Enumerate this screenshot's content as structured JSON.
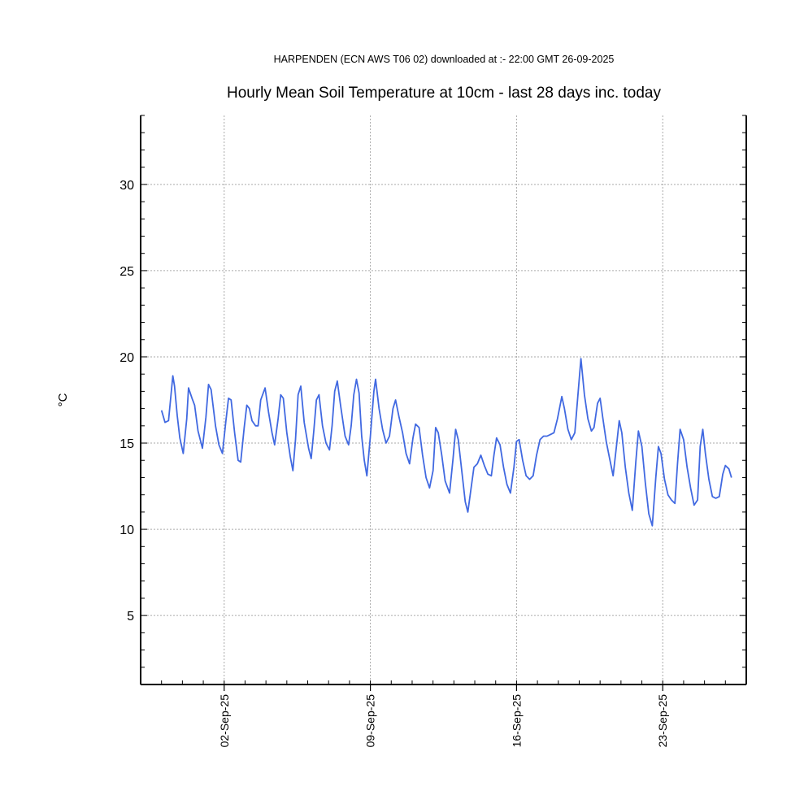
{
  "header": {
    "subtitle": "HARPENDEN (ECN AWS T06 02) downloaded at :- 22:00 GMT 26-09-2025",
    "title": "Hourly Mean Soil Temperature at 10cm - last 28 days inc. today"
  },
  "colors": {
    "line": "#4169E1",
    "grid": "#AAAAAA",
    "axis": "#000000"
  },
  "chart_data": {
    "type": "line",
    "title": "Hourly Mean Soil Temperature at 10cm - last 28 days inc. today",
    "xlabel": "",
    "ylabel": "°C",
    "xlim": [
      "2025-08-29T00:00",
      "2025-09-27T00:00"
    ],
    "ylim": [
      1,
      34
    ],
    "y_ticks": [
      5,
      10,
      15,
      20,
      25,
      30
    ],
    "x_ticks": [
      {
        "date": "2025-09-02",
        "label": "02-Sep-25"
      },
      {
        "date": "2025-09-09",
        "label": "09-Sep-25"
      },
      {
        "date": "2025-09-16",
        "label": "16-Sep-25"
      },
      {
        "date": "2025-09-23",
        "label": "23-Sep-25"
      }
    ],
    "grid": true,
    "series": [
      {
        "values": [
          [
            "2025-08-30T00:00",
            16.9
          ],
          [
            "2025-08-30T04:00",
            16.2
          ],
          [
            "2025-08-30T08:00",
            16.3
          ],
          [
            "2025-08-30T13:00",
            18.9
          ],
          [
            "2025-08-30T15:00",
            18.3
          ],
          [
            "2025-08-30T18:00",
            16.6
          ],
          [
            "2025-08-30T21:00",
            15.3
          ],
          [
            "2025-08-31T01:00",
            14.4
          ],
          [
            "2025-08-31T05:00",
            16.4
          ],
          [
            "2025-08-31T07:00",
            18.2
          ],
          [
            "2025-08-31T11:00",
            17.6
          ],
          [
            "2025-08-31T14:00",
            17.2
          ],
          [
            "2025-08-31T18:00",
            15.7
          ],
          [
            "2025-08-31T23:00",
            14.7
          ],
          [
            "2025-09-01T03:00",
            16.5
          ],
          [
            "2025-09-01T06:00",
            18.4
          ],
          [
            "2025-09-01T09:00",
            18.1
          ],
          [
            "2025-09-01T14:00",
            16.0
          ],
          [
            "2025-09-01T18:00",
            14.9
          ],
          [
            "2025-09-01T22:00",
            14.4
          ],
          [
            "2025-09-02T02:00",
            16.3
          ],
          [
            "2025-09-02T05:00",
            17.6
          ],
          [
            "2025-09-02T08:00",
            17.5
          ],
          [
            "2025-09-02T12:00",
            15.6
          ],
          [
            "2025-09-02T16:00",
            14.0
          ],
          [
            "2025-09-02T19:00",
            13.9
          ],
          [
            "2025-09-02T23:00",
            15.9
          ],
          [
            "2025-09-03T02:00",
            17.2
          ],
          [
            "2025-09-03T05:00",
            17.0
          ],
          [
            "2025-09-03T08:00",
            16.3
          ],
          [
            "2025-09-03T12:00",
            16.0
          ],
          [
            "2025-09-03T15:00",
            16.0
          ],
          [
            "2025-09-03T18:00",
            17.5
          ],
          [
            "2025-09-03T23:00",
            18.2
          ],
          [
            "2025-09-04T03:00",
            16.8
          ],
          [
            "2025-09-04T07:00",
            15.6
          ],
          [
            "2025-09-04T10:00",
            14.9
          ],
          [
            "2025-09-04T14:00",
            16.4
          ],
          [
            "2025-09-04T17:00",
            17.8
          ],
          [
            "2025-09-04T20:00",
            17.6
          ],
          [
            "2025-09-05T00:00",
            15.6
          ],
          [
            "2025-09-05T04:00",
            14.2
          ],
          [
            "2025-09-05T07:00",
            13.4
          ],
          [
            "2025-09-05T10:00",
            15.2
          ],
          [
            "2025-09-05T13:00",
            17.8
          ],
          [
            "2025-09-05T16:00",
            18.3
          ],
          [
            "2025-09-05T20:00",
            16.2
          ],
          [
            "2025-09-06T01:00",
            14.7
          ],
          [
            "2025-09-06T04:00",
            14.1
          ],
          [
            "2025-09-06T07:00",
            15.7
          ],
          [
            "2025-09-06T10:00",
            17.5
          ],
          [
            "2025-09-06T13:00",
            17.8
          ],
          [
            "2025-09-06T17:00",
            16.0
          ],
          [
            "2025-09-06T21:00",
            15.0
          ],
          [
            "2025-09-07T01:00",
            14.6
          ],
          [
            "2025-09-07T04:00",
            16.0
          ],
          [
            "2025-09-07T07:00",
            18.0
          ],
          [
            "2025-09-07T10:00",
            18.6
          ],
          [
            "2025-09-07T14:00",
            17.1
          ],
          [
            "2025-09-07T19:00",
            15.4
          ],
          [
            "2025-09-07T23:00",
            14.9
          ],
          [
            "2025-09-08T02:00",
            16.0
          ],
          [
            "2025-09-08T05:00",
            17.8
          ],
          [
            "2025-09-08T08:00",
            18.7
          ],
          [
            "2025-09-08T11:00",
            17.9
          ],
          [
            "2025-09-08T14:00",
            15.4
          ],
          [
            "2025-09-08T17:00",
            14.0
          ],
          [
            "2025-09-08T20:00",
            13.1
          ],
          [
            "2025-09-09T00:00",
            15.4
          ],
          [
            "2025-09-09T04:00",
            18.0
          ],
          [
            "2025-09-09T06:00",
            18.7
          ],
          [
            "2025-09-09T10:00",
            17.0
          ],
          [
            "2025-09-09T14:00",
            15.8
          ],
          [
            "2025-09-09T18:00",
            15.0
          ],
          [
            "2025-09-09T22:00",
            15.4
          ],
          [
            "2025-09-10T02:00",
            17.0
          ],
          [
            "2025-09-10T05:00",
            17.5
          ],
          [
            "2025-09-10T09:00",
            16.5
          ],
          [
            "2025-09-10T13:00",
            15.6
          ],
          [
            "2025-09-10T17:00",
            14.4
          ],
          [
            "2025-09-10T21:00",
            13.8
          ],
          [
            "2025-09-11T01:00",
            15.3
          ],
          [
            "2025-09-11T04:00",
            16.1
          ],
          [
            "2025-09-11T08:00",
            15.9
          ],
          [
            "2025-09-11T12:00",
            14.3
          ],
          [
            "2025-09-11T16:00",
            13.0
          ],
          [
            "2025-09-11T20:00",
            12.4
          ],
          [
            "2025-09-12T00:00",
            13.4
          ],
          [
            "2025-09-12T03:00",
            15.9
          ],
          [
            "2025-09-12T06:00",
            15.6
          ],
          [
            "2025-09-12T10:00",
            14.3
          ],
          [
            "2025-09-12T14:00",
            12.8
          ],
          [
            "2025-09-12T19:00",
            12.1
          ],
          [
            "2025-09-12T23:00",
            14.1
          ],
          [
            "2025-09-13T02:00",
            15.8
          ],
          [
            "2025-09-13T05:00",
            15.2
          ],
          [
            "2025-09-13T09:00",
            13.4
          ],
          [
            "2025-09-13T13:00",
            11.6
          ],
          [
            "2025-09-13T16:00",
            11.0
          ],
          [
            "2025-09-13T20:00",
            12.5
          ],
          [
            "2025-09-13T23:00",
            13.6
          ],
          [
            "2025-09-14T03:00",
            13.8
          ],
          [
            "2025-09-14T07:00",
            14.3
          ],
          [
            "2025-09-14T11:00",
            13.7
          ],
          [
            "2025-09-14T15:00",
            13.2
          ],
          [
            "2025-09-14T19:00",
            13.1
          ],
          [
            "2025-09-14T22:00",
            14.3
          ],
          [
            "2025-09-15T01:00",
            15.3
          ],
          [
            "2025-09-15T05:00",
            14.9
          ],
          [
            "2025-09-15T09:00",
            13.6
          ],
          [
            "2025-09-15T13:00",
            12.6
          ],
          [
            "2025-09-15T17:00",
            12.1
          ],
          [
            "2025-09-15T21:00",
            13.6
          ],
          [
            "2025-09-16T00:00",
            15.1
          ],
          [
            "2025-09-16T03:00",
            15.2
          ],
          [
            "2025-09-16T07:00",
            14.0
          ],
          [
            "2025-09-16T11:00",
            13.1
          ],
          [
            "2025-09-16T15:00",
            12.9
          ],
          [
            "2025-09-16T19:00",
            13.1
          ],
          [
            "2025-09-16T23:00",
            14.3
          ],
          [
            "2025-09-17T03:00",
            15.2
          ],
          [
            "2025-09-17T07:00",
            15.4
          ],
          [
            "2025-09-17T11:00",
            15.4
          ],
          [
            "2025-09-17T15:00",
            15.5
          ],
          [
            "2025-09-17T19:00",
            15.6
          ],
          [
            "2025-09-17T23:00",
            16.4
          ],
          [
            "2025-09-18T04:00",
            17.7
          ],
          [
            "2025-09-18T07:00",
            17.0
          ],
          [
            "2025-09-18T11:00",
            15.8
          ],
          [
            "2025-09-18T15:00",
            15.2
          ],
          [
            "2025-09-18T19:00",
            15.6
          ],
          [
            "2025-09-19T00:00",
            18.7
          ],
          [
            "2025-09-19T02:00",
            19.9
          ],
          [
            "2025-09-19T06:00",
            17.8
          ],
          [
            "2025-09-19T10:00",
            16.4
          ],
          [
            "2025-09-19T14:00",
            15.7
          ],
          [
            "2025-09-19T17:00",
            15.9
          ],
          [
            "2025-09-19T21:00",
            17.3
          ],
          [
            "2025-09-20T00:00",
            17.6
          ],
          [
            "2025-09-20T03:00",
            16.5
          ],
          [
            "2025-09-20T07:00",
            15.1
          ],
          [
            "2025-09-20T11:00",
            14.1
          ],
          [
            "2025-09-20T15:00",
            13.1
          ],
          [
            "2025-09-20T19:00",
            14.9
          ],
          [
            "2025-09-20T22:00",
            16.3
          ],
          [
            "2025-09-21T01:00",
            15.6
          ],
          [
            "2025-09-21T05:00",
            13.6
          ],
          [
            "2025-09-21T09:00",
            12.1
          ],
          [
            "2025-09-21T13:00",
            11.1
          ],
          [
            "2025-09-21T17:00",
            13.9
          ],
          [
            "2025-09-21T20:00",
            15.7
          ],
          [
            "2025-09-22T00:00",
            14.8
          ],
          [
            "2025-09-22T04:00",
            12.7
          ],
          [
            "2025-09-22T08:00",
            10.9
          ],
          [
            "2025-09-22T12:00",
            10.2
          ],
          [
            "2025-09-22T16:00",
            13.0
          ],
          [
            "2025-09-22T19:00",
            14.8
          ],
          [
            "2025-09-22T22:00",
            14.4
          ],
          [
            "2025-09-23T02:00",
            12.9
          ],
          [
            "2025-09-23T06:00",
            12.0
          ],
          [
            "2025-09-23T10:00",
            11.7
          ],
          [
            "2025-09-23T14:00",
            11.5
          ],
          [
            "2025-09-23T17:00",
            13.8
          ],
          [
            "2025-09-23T20:00",
            15.8
          ],
          [
            "2025-09-24T00:00",
            15.2
          ],
          [
            "2025-09-24T04:00",
            13.6
          ],
          [
            "2025-09-24T08:00",
            12.4
          ],
          [
            "2025-09-24T12:00",
            11.4
          ],
          [
            "2025-09-24T16:00",
            11.7
          ],
          [
            "2025-09-24T19:00",
            14.8
          ],
          [
            "2025-09-24T22:00",
            15.8
          ],
          [
            "2025-09-25T01:00",
            14.4
          ],
          [
            "2025-09-25T05:00",
            12.9
          ],
          [
            "2025-09-25T09:00",
            11.9
          ],
          [
            "2025-09-25T13:00",
            11.8
          ],
          [
            "2025-09-25T17:00",
            11.9
          ],
          [
            "2025-09-25T21:00",
            13.2
          ],
          [
            "2025-09-26T00:00",
            13.7
          ],
          [
            "2025-09-26T04:00",
            13.5
          ],
          [
            "2025-09-26T07:00",
            13.0
          ]
        ]
      }
    ]
  }
}
